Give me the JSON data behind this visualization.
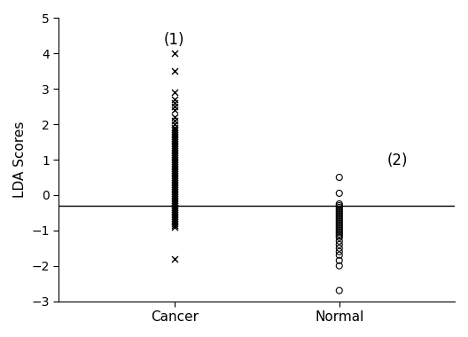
{
  "cancer_x_values": [
    4.0,
    3.5,
    2.9,
    2.7,
    2.6,
    2.5,
    2.4,
    2.2,
    2.1,
    2.0,
    1.9,
    1.85,
    1.8,
    1.75,
    1.7,
    1.65,
    1.6,
    1.55,
    1.5,
    1.45,
    1.4,
    1.35,
    1.3,
    1.25,
    1.2,
    1.15,
    1.1,
    1.05,
    1.0,
    0.95,
    0.9,
    0.85,
    0.8,
    0.75,
    0.7,
    0.65,
    0.6,
    0.55,
    0.5,
    0.45,
    0.4,
    0.35,
    0.3,
    0.25,
    0.2,
    0.15,
    0.1,
    0.05,
    0.0,
    -0.05,
    -0.1,
    -0.15,
    -0.2,
    -0.25,
    -0.3,
    -0.35,
    -0.4,
    -0.45,
    -0.5,
    -0.55,
    -0.6,
    -0.65,
    -0.7,
    -0.75,
    -0.8,
    -0.85,
    -0.9,
    -1.8
  ],
  "normal_y_values": [
    0.5,
    0.05,
    -0.25,
    -0.3,
    -0.35,
    -0.4,
    -0.45,
    -0.5,
    -0.55,
    -0.6,
    -0.65,
    -0.7,
    -0.75,
    -0.8,
    -0.85,
    -0.9,
    -0.95,
    -1.0,
    -1.05,
    -1.1,
    -1.15,
    -1.2,
    -1.3,
    -1.4,
    -1.5,
    -1.6,
    -1.7,
    -1.85,
    -2.0,
    -2.7
  ],
  "hline_y": -0.3,
  "ylabel": "LDA Scores",
  "group1_label": "Cancer",
  "group2_label": "Normal",
  "annotation1": "(1)",
  "annotation2": "(2)",
  "ylim": [
    -3,
    5
  ],
  "yticks": [
    -3,
    -2,
    -1,
    0,
    1,
    2,
    3,
    4,
    5
  ],
  "marker_cancer": "x",
  "marker_normal": "o",
  "marker_color": "black",
  "marker_size": 5,
  "background_color": "#ffffff",
  "annotation_fontsize": 12
}
